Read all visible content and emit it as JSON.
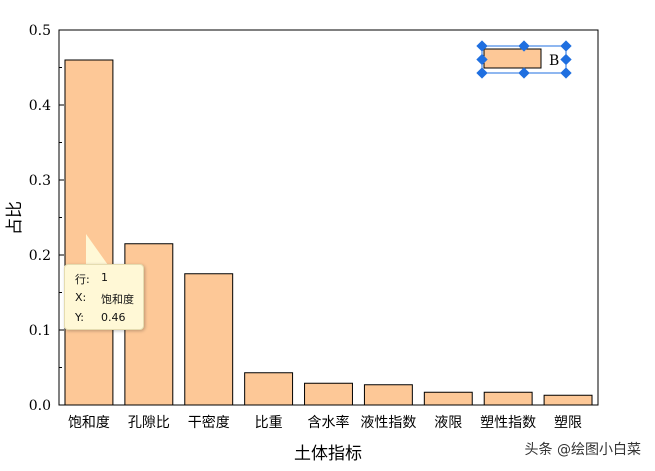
{
  "chart_data": {
    "type": "bar",
    "categories": [
      "饱和度",
      "孔隙比",
      "干密度",
      "比重",
      "含水率",
      "液性指数",
      "液限",
      "塑性指数",
      "塑限"
    ],
    "values": [
      0.46,
      0.215,
      0.175,
      0.043,
      0.029,
      0.027,
      0.017,
      0.017,
      0.013
    ],
    "xlabel": "土体指标",
    "ylabel": "占比",
    "ylim": [
      0,
      0.5
    ],
    "yticks": [
      "0.0",
      "0.1",
      "0.2",
      "0.3",
      "0.4",
      "0.5"
    ],
    "legend": {
      "entries": [
        "B"
      ],
      "placement": "top-right",
      "selected": true
    },
    "colors": {
      "bar_fill": "#fdc897",
      "bar_stroke": "#000000",
      "selection_handle": "#1f6fe0"
    }
  },
  "tooltip": {
    "row_key": "行:",
    "row_value": "1",
    "x_key": "X:",
    "x_value": "饱和度",
    "y_key": "Y:",
    "y_value": "0.46"
  },
  "watermark": "头条 @绘图小白菜"
}
